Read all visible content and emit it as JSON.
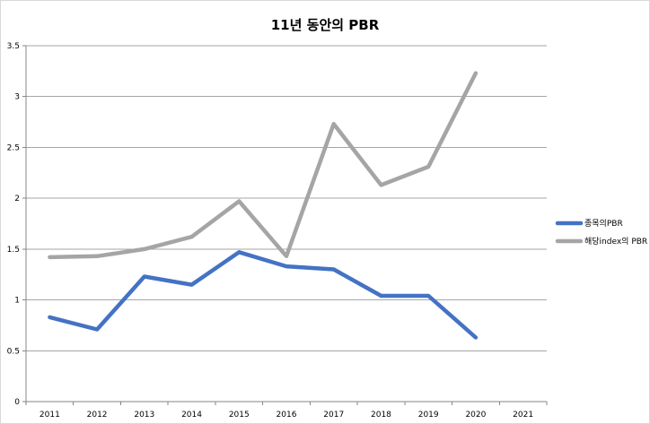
{
  "chart_data": {
    "type": "line",
    "title": "11년 동안의 PBR",
    "xlabel": "",
    "ylabel": "",
    "x": [
      "2011",
      "2012",
      "2013",
      "2014",
      "2015",
      "2016",
      "2017",
      "2018",
      "2019",
      "2020",
      "2021"
    ],
    "ylim": [
      0,
      3.5
    ],
    "yticks": [
      0,
      0.5,
      1,
      1.5,
      2,
      2.5,
      3,
      3.5
    ],
    "ytick_labels": [
      "0",
      "0.5",
      "1",
      "1.5",
      "2",
      "2.5",
      "3",
      "3.5"
    ],
    "grid": true,
    "legend_position": "right",
    "series": [
      {
        "name": "종목의PBR",
        "color": "#4472c4",
        "values": [
          0.83,
          0.71,
          1.23,
          1.15,
          1.47,
          1.33,
          1.3,
          1.04,
          1.04,
          0.63,
          null
        ]
      },
      {
        "name": "해당index의 PBR",
        "color": "#a5a5a5",
        "values": [
          1.42,
          1.43,
          1.5,
          1.62,
          1.97,
          1.43,
          2.73,
          2.13,
          2.31,
          3.23,
          null
        ]
      }
    ]
  }
}
